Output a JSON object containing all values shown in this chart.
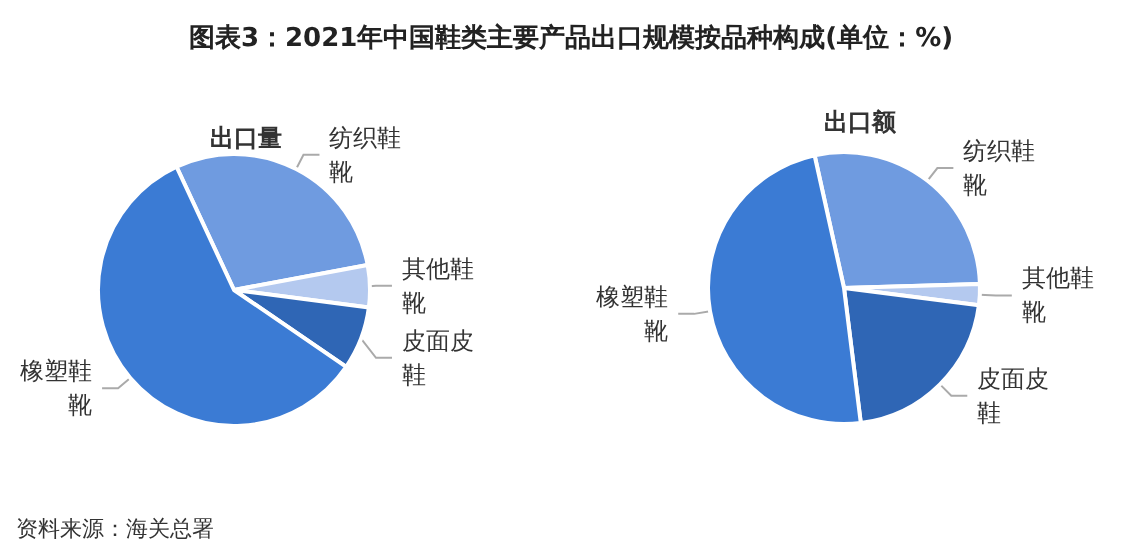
{
  "chart_data": [
    {
      "type": "pie",
      "title": "图表3：2021年中国鞋类主要产品出口规模按品种构成(单位：%)",
      "subtitle": "出口量",
      "categories": [
        "纺织鞋靴",
        "其他鞋靴",
        "皮面皮鞋",
        "橡塑鞋靴"
      ],
      "values": [
        29,
        5,
        7.5,
        58.5
      ],
      "colors": [
        "#6f9be0",
        "#b4c9ef",
        "#2f66b5",
        "#3b7bd4"
      ],
      "legend": false,
      "annotations": [
        "资料来源：海关总署"
      ]
    },
    {
      "type": "pie",
      "subtitle": "出口额",
      "categories": [
        "纺织鞋靴",
        "其他鞋靴",
        "皮面皮鞋",
        "橡塑鞋靴"
      ],
      "values": [
        28,
        2.5,
        21,
        48.5
      ],
      "colors": [
        "#6f9be0",
        "#b4c9ef",
        "#2f66b5",
        "#3b7bd4"
      ],
      "legend": false
    }
  ]
}
